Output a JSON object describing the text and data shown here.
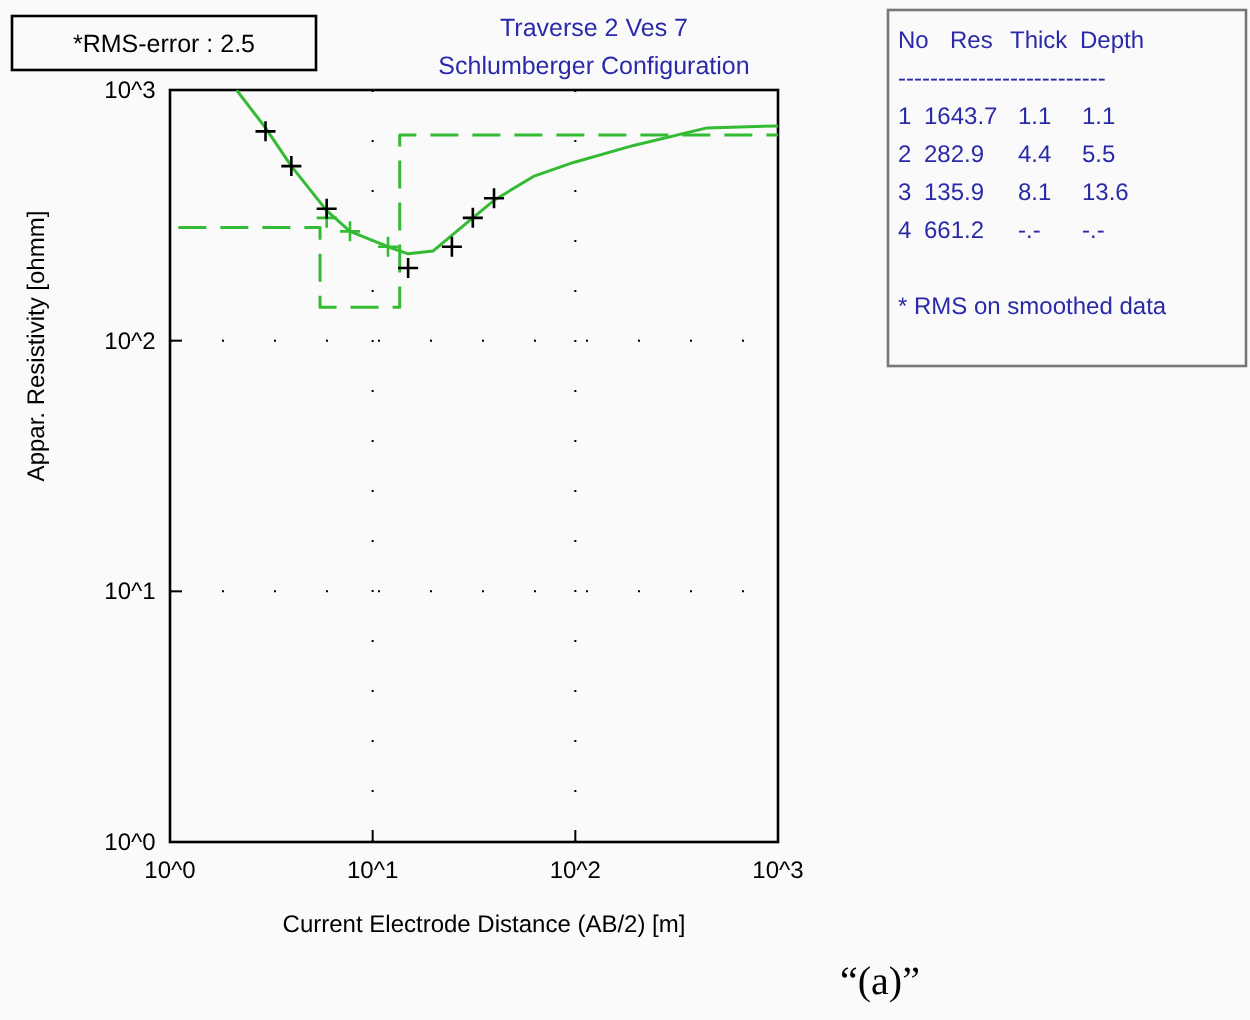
{
  "chart_data": {
    "type": "line",
    "title": "Traverse 2 Ves 7",
    "subtitle": "Schlumberger Configuration",
    "xlabel": "Current Electrode Distance (AB/2) [m]",
    "ylabel": "Appar. Resistivity [ohmm]",
    "log": "xy",
    "grid": true,
    "xlim": [
      1,
      1000
    ],
    "ylim": [
      1,
      1000
    ],
    "xticks": [
      {
        "value": 1,
        "label": "10^0"
      },
      {
        "value": 10,
        "label": "10^1"
      },
      {
        "value": 100,
        "label": "10^2"
      },
      {
        "value": 1000,
        "label": "10^3"
      }
    ],
    "yticks": [
      {
        "value": 1,
        "label": "10^0"
      },
      {
        "value": 10,
        "label": "10^1"
      },
      {
        "value": 100,
        "label": "10^2"
      },
      {
        "value": 1000,
        "label": "10^3"
      }
    ],
    "series": [
      {
        "type": "line",
        "color": "#33bb33",
        "line_style": "solid",
        "marker": "none",
        "x": [
          2.13,
          2.96,
          3.97,
          5.93,
          7.73,
          11.9,
          14.96,
          19.9,
          31.2,
          39.7,
          62.1,
          98,
          194,
          446,
          1000
        ],
        "values": [
          1000,
          706,
          497,
          330,
          273,
          237,
          222,
          228,
          309,
          363,
          452,
          514,
          601,
          706,
          719
        ]
      },
      {
        "type": "line",
        "color": "#33bb33",
        "line_style": "dashed",
        "marker": "none",
        "x": [
          1.1,
          5.5,
          5.5,
          13.6,
          13.6,
          1000
        ],
        "values": [
          282.9,
          282.9,
          135.9,
          135.9,
          661.2,
          661.2
        ]
      },
      {
        "type": "scatter",
        "color": "#33bb33",
        "marker": "cross",
        "x": [
          5.93,
          7.73,
          11.9
        ],
        "values": [
          309,
          273,
          237
        ]
      },
      {
        "type": "scatter",
        "color": "#000000",
        "marker": "cross",
        "x": [
          2.96,
          3.97,
          5.93,
          14.96,
          24.6,
          31.2,
          39.7
        ],
        "values": [
          684,
          497,
          336,
          195,
          237,
          309,
          370
        ]
      }
    ],
    "annotations": [
      "*RMS-error :  2.5",
      "No  Res  Thick  Depth",
      "--------------------------",
      "1  1643.7  1.1  1.1",
      "2  282.9  4.4  5.5",
      "3  135.9  8.1  13.6",
      "4  661.2  -.-  -.-",
      "* RMS on smoothed data",
      "“(a)”"
    ]
  }
}
